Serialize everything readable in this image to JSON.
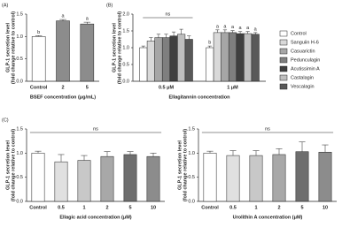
{
  "chart_data": [
    {
      "type": "bar",
      "panel": "(A)",
      "ylabel": [
        "GLP-1 secretion level",
        "(fold change relative to control)"
      ],
      "xlabel": "BSEF concentration (μg/mL)",
      "categories": [
        "Control",
        "2",
        "5"
      ],
      "values": [
        1.0,
        1.35,
        1.28
      ],
      "errors": [
        0.02,
        0.03,
        0.04
      ],
      "annotations": [
        "b",
        "a",
        "a"
      ],
      "colors": [
        "#ffffff",
        "#8c8c8c",
        "#8c8c8c"
      ],
      "ylim": [
        0,
        1.5
      ],
      "yticks": [
        {
          "value": 0,
          "label": "0.0"
        },
        {
          "value": 0.5,
          "label": "0.5"
        },
        {
          "value": 1,
          "label": "1.0"
        },
        {
          "value": 1.5,
          "label": "1.5"
        }
      ]
    },
    {
      "type": "bar",
      "panel": "(B)",
      "ylabel": [
        "GLP-1 secretion level",
        "(fold change relative to control)"
      ],
      "xlabel": "Ellagitannin concentration",
      "categories": [
        "0.5 μM",
        "1 μM"
      ],
      "ns_label": "ns",
      "series": [
        {
          "name": "Control",
          "color": "#ffffff",
          "values": [
            1.0,
            1.0
          ],
          "errors": [
            0.05,
            0.05
          ],
          "annotations": [
            null,
            "b"
          ]
        },
        {
          "name": "Sanguiin H-6",
          "color": "#d9d9d9",
          "values": [
            1.2,
            1.45
          ],
          "errors": [
            0.1,
            0.08
          ],
          "annotations": [
            null,
            "a"
          ]
        },
        {
          "name": "Casuarictin",
          "color": "#a6a6a6",
          "values": [
            1.3,
            1.45
          ],
          "errors": [
            0.1,
            0.08
          ],
          "annotations": [
            null,
            "a"
          ]
        },
        {
          "name": "Pedunculagin",
          "color": "#7f7f7f",
          "values": [
            1.3,
            1.45
          ],
          "errors": [
            0.1,
            0.06
          ],
          "annotations": [
            null,
            "a"
          ]
        },
        {
          "name": "Acutissimin A",
          "color": "#404040",
          "values": [
            1.35,
            1.42
          ],
          "errors": [
            0.12,
            0.06
          ],
          "annotations": [
            null,
            "a"
          ]
        },
        {
          "name": "Castalagin",
          "color": "#bfbfbf",
          "values": [
            1.4,
            1.42
          ],
          "errors": [
            0.15,
            0.06
          ],
          "annotations": [
            null,
            "a"
          ]
        },
        {
          "name": "Vescalagin",
          "color": "#595959",
          "values": [
            1.25,
            1.4
          ],
          "errors": [
            0.1,
            0.05
          ],
          "annotations": [
            null,
            "a"
          ]
        }
      ],
      "ylim": [
        0,
        2
      ],
      "yticks": [
        {
          "value": 0,
          "label": "0.0"
        },
        {
          "value": 0.5,
          "label": "0.5"
        },
        {
          "value": 1,
          "label": "1.0"
        },
        {
          "value": 1.5,
          "label": "1.5"
        },
        {
          "value": 2,
          "label": "2.0"
        }
      ]
    },
    {
      "type": "bar",
      "panel": "(C)",
      "ylabel": [
        "GLP-1 secretion level",
        "(fold change relative to control)"
      ],
      "xlabel": "Ellagic acid concentration (μM)",
      "categories": [
        "Control",
        "0.5",
        "1",
        "2",
        "5",
        "10"
      ],
      "ns_label": "ns",
      "values": [
        1.0,
        0.82,
        0.85,
        0.93,
        0.97,
        0.93
      ],
      "errors": [
        0.04,
        0.15,
        0.1,
        0.1,
        0.06,
        0.07
      ],
      "colors": [
        "#ffffff",
        "#e0e0e0",
        "#c8c8c8",
        "#a8a8a8",
        "#6e6e6e",
        "#8c8c8c"
      ],
      "ylim": [
        0,
        1.5
      ],
      "yticks": [
        {
          "value": 0,
          "label": "0.0"
        },
        {
          "value": 0.5,
          "label": "0.5"
        },
        {
          "value": 1,
          "label": "1.0"
        },
        {
          "value": 1.5,
          "label": "1.5"
        }
      ]
    },
    {
      "type": "bar",
      "ylabel": [
        "GLP-1 secretion level",
        "(fold change relative to control)"
      ],
      "xlabel": "Urolithin A concentration (μM)",
      "categories": [
        "Control",
        "0.5",
        "1",
        "2",
        "5",
        "10"
      ],
      "ns_label": "ns",
      "values": [
        1.0,
        0.95,
        0.95,
        0.97,
        1.03,
        1.02
      ],
      "errors": [
        0.04,
        0.1,
        0.1,
        0.12,
        0.2,
        0.15
      ],
      "colors": [
        "#ffffff",
        "#e0e0e0",
        "#c8c8c8",
        "#a8a8a8",
        "#6e6e6e",
        "#8c8c8c"
      ],
      "ylim": [
        0,
        1.5
      ],
      "yticks": [
        {
          "value": 0,
          "label": "0.0"
        },
        {
          "value": 0.5,
          "label": "0.5"
        },
        {
          "value": 1,
          "label": "1.0"
        },
        {
          "value": 1.5,
          "label": "1.5"
        }
      ]
    }
  ]
}
